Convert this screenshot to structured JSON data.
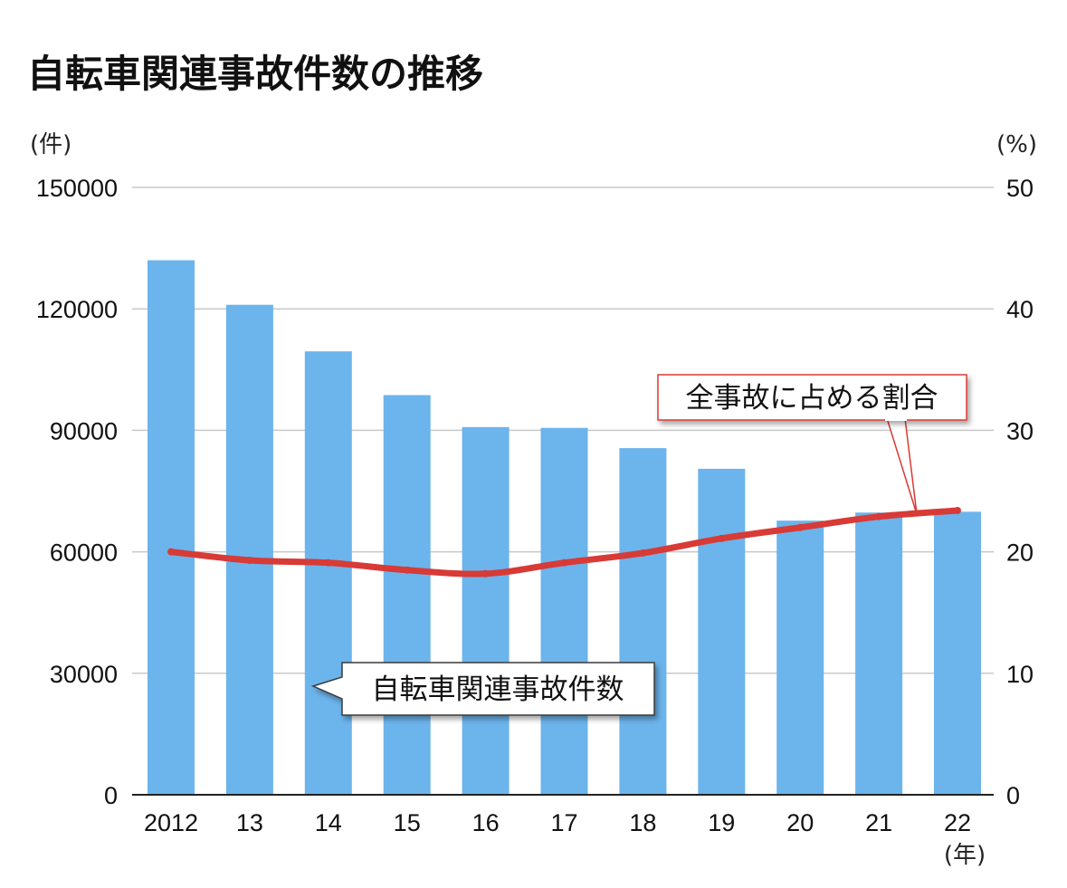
{
  "chart_data": {
    "type": "bar",
    "title": "自転車関連事故件数の推移",
    "categories": [
      "2012",
      "13",
      "14",
      "15",
      "16",
      "17",
      "18",
      "19",
      "20",
      "21",
      "22"
    ],
    "x_unit_label": "(年)",
    "y_left": {
      "unit_label": "(件)",
      "ylim": [
        0,
        150000
      ],
      "ticks": [
        "0",
        "30000",
        "60000",
        "90000",
        "120000",
        "150000"
      ]
    },
    "y_right": {
      "unit_label": "(%)",
      "ylim": [
        0,
        50
      ],
      "ticks": [
        "0",
        "10",
        "20",
        "30",
        "40",
        "50"
      ]
    },
    "grid": true,
    "series": [
      {
        "name": "自転車関連事故件数",
        "type": "bar",
        "axis": "left",
        "color": "#6CB4EC",
        "values": [
          132000,
          121000,
          109500,
          98700,
          90800,
          90600,
          85600,
          80500,
          67700,
          69700,
          69900
        ]
      },
      {
        "name": "全事故に占める割合",
        "type": "line",
        "axis": "right",
        "color": "#D83A36",
        "values": [
          20.0,
          19.3,
          19.1,
          18.5,
          18.2,
          19.1,
          19.9,
          21.1,
          22.0,
          22.9,
          23.4
        ]
      }
    ],
    "annotations": {
      "bar_label": "自転車関連事故件数",
      "line_label": "全事故に占める割合"
    }
  }
}
